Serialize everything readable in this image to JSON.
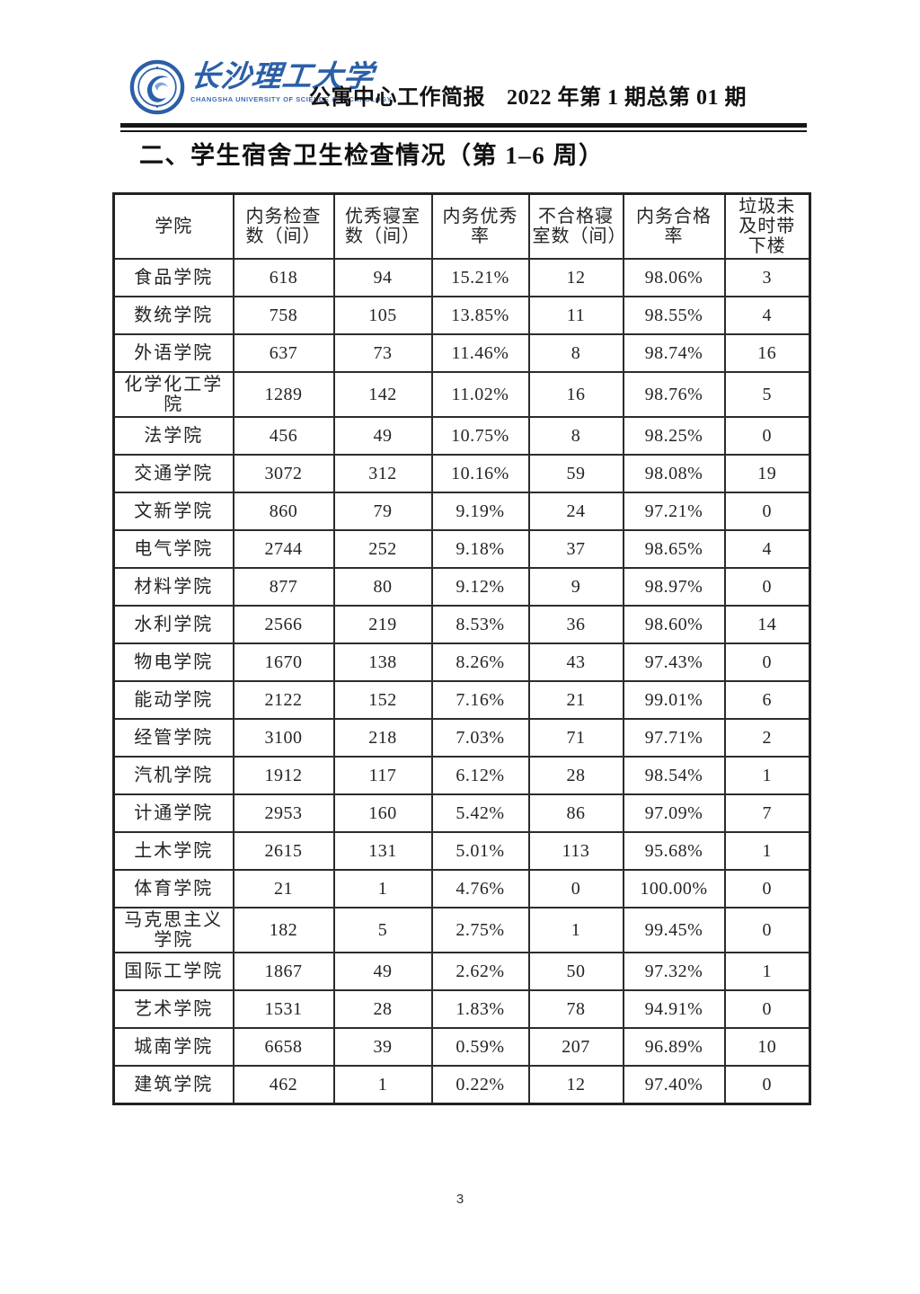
{
  "masthead": {
    "university_zh": "长沙理工大学",
    "university_en": "CHANGSHA UNIVERSITY OF SCIENCE & TECHNOLOGY",
    "bulletin_title": "公寓中心工作简报",
    "issue": "2022 年第 1 期总第 01 期",
    "logo_color": "#2b5fa8"
  },
  "section_title": "二、学生宿舍卫生检查情况（第 1–6 周）",
  "table": {
    "columns": [
      "学院",
      "内务检查\n数（间）",
      "优秀寝室\n数（间）",
      "内务优秀\n率",
      "不合格寝\n室数（间）",
      "内务合格\n率",
      "垃圾未\n及时带\n下楼"
    ],
    "rows": [
      [
        "食品学院",
        "618",
        "94",
        "15.21%",
        "12",
        "98.06%",
        "3"
      ],
      [
        "数统学院",
        "758",
        "105",
        "13.85%",
        "11",
        "98.55%",
        "4"
      ],
      [
        "外语学院",
        "637",
        "73",
        "11.46%",
        "8",
        "98.74%",
        "16"
      ],
      [
        "化学化工学院",
        "1289",
        "142",
        "11.02%",
        "16",
        "98.76%",
        "5"
      ],
      [
        "法学院",
        "456",
        "49",
        "10.75%",
        "8",
        "98.25%",
        "0"
      ],
      [
        "交通学院",
        "3072",
        "312",
        "10.16%",
        "59",
        "98.08%",
        "19"
      ],
      [
        "文新学院",
        "860",
        "79",
        "9.19%",
        "24",
        "97.21%",
        "0"
      ],
      [
        "电气学院",
        "2744",
        "252",
        "9.18%",
        "37",
        "98.65%",
        "4"
      ],
      [
        "材料学院",
        "877",
        "80",
        "9.12%",
        "9",
        "98.97%",
        "0"
      ],
      [
        "水利学院",
        "2566",
        "219",
        "8.53%",
        "36",
        "98.60%",
        "14"
      ],
      [
        "物电学院",
        "1670",
        "138",
        "8.26%",
        "43",
        "97.43%",
        "0"
      ],
      [
        "能动学院",
        "2122",
        "152",
        "7.16%",
        "21",
        "99.01%",
        "6"
      ],
      [
        "经管学院",
        "3100",
        "218",
        "7.03%",
        "71",
        "97.71%",
        "2"
      ],
      [
        "汽机学院",
        "1912",
        "117",
        "6.12%",
        "28",
        "98.54%",
        "1"
      ],
      [
        "计通学院",
        "2953",
        "160",
        "5.42%",
        "86",
        "97.09%",
        "7"
      ],
      [
        "土木学院",
        "2615",
        "131",
        "5.01%",
        "113",
        "95.68%",
        "1"
      ],
      [
        "体育学院",
        "21",
        "1",
        "4.76%",
        "0",
        "100.00%",
        "0"
      ],
      [
        "马克思主义学院",
        "182",
        "5",
        "2.75%",
        "1",
        "99.45%",
        "0"
      ],
      [
        "国际工学院",
        "1867",
        "49",
        "2.62%",
        "50",
        "97.32%",
        "1"
      ],
      [
        "艺术学院",
        "1531",
        "28",
        "1.83%",
        "78",
        "94.91%",
        "0"
      ],
      [
        "城南学院",
        "6658",
        "39",
        "0.59%",
        "207",
        "96.89%",
        "10"
      ],
      [
        "建筑学院",
        "462",
        "1",
        "0.22%",
        "12",
        "97.40%",
        "0"
      ]
    ]
  },
  "footer": {
    "page_number": "3"
  }
}
